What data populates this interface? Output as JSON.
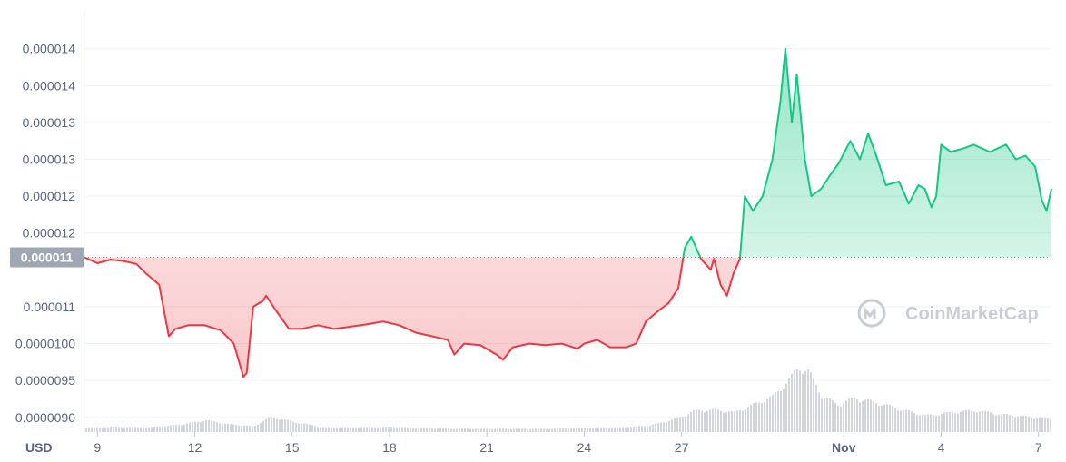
{
  "chart_data": {
    "type": "line",
    "currency_label": "USD",
    "reference_price_label": "0.000011",
    "reference_value": 1.117e-05,
    "ylim": [
      8.8e-06,
      1.46e-05
    ],
    "y_ticks": [
      {
        "value": 1.4e-05,
        "label": "0.000014"
      },
      {
        "value": 1.35e-05,
        "label": "0.000014"
      },
      {
        "value": 1.3e-05,
        "label": "0.000013"
      },
      {
        "value": 1.25e-05,
        "label": "0.000013"
      },
      {
        "value": 1.2e-05,
        "label": "0.000012"
      },
      {
        "value": 1.15e-05,
        "label": "0.000012"
      },
      {
        "value": 1.05e-05,
        "label": "0.000011"
      },
      {
        "value": 1e-05,
        "label": "0.0000100"
      },
      {
        "value": 9.5e-06,
        "label": "0.0000095"
      },
      {
        "value": 9e-06,
        "label": "0.0000090"
      }
    ],
    "x_ticks": [
      {
        "day": 9,
        "label": "9"
      },
      {
        "day": 12,
        "label": "12"
      },
      {
        "day": 15,
        "label": "15"
      },
      {
        "day": 18,
        "label": "18"
      },
      {
        "day": 21,
        "label": "21"
      },
      {
        "day": 24,
        "label": "24"
      },
      {
        "day": 27,
        "label": "27"
      },
      {
        "day": 32,
        "label": "Nov",
        "bold": true
      },
      {
        "day": 35,
        "label": "4"
      },
      {
        "day": 38,
        "label": "7"
      }
    ],
    "xlim": [
      8.6,
      38.4
    ],
    "series": [
      {
        "x": [
          8.6,
          9.0,
          9.4,
          9.8,
          10.2,
          10.5,
          10.9,
          11.2,
          11.4,
          11.8,
          12.3,
          12.8,
          13.2,
          13.5,
          13.6,
          13.8,
          14.1,
          14.2,
          14.5,
          14.9,
          15.3,
          15.8,
          16.3,
          16.8,
          17.3,
          17.8,
          18.3,
          18.8,
          19.3,
          19.8,
          20.0,
          20.3,
          20.8,
          21.3,
          21.5,
          21.8,
          22.3,
          22.8,
          23.3,
          23.8,
          24.0,
          24.4,
          24.8,
          25.3,
          25.6,
          25.9,
          26.3,
          26.6,
          26.9,
          27.1,
          27.3,
          27.6,
          27.9,
          28.0,
          28.2,
          28.4,
          28.6,
          28.8,
          28.95,
          29.2,
          29.5,
          29.8,
          30.05,
          30.2,
          30.4,
          30.55,
          30.8,
          31.0,
          31.3,
          31.6,
          31.85,
          32.2,
          32.5,
          32.75,
          33.0,
          33.3,
          33.7,
          34.0,
          34.3,
          34.5,
          34.7,
          34.85,
          35.0,
          35.3,
          35.7,
          36.0,
          36.5,
          37.0,
          37.3,
          37.6,
          37.9,
          38.1,
          38.25,
          38.4
        ],
        "y": [
          1.117e-05,
          1.109e-05,
          1.114e-05,
          1.112e-05,
          1.108e-05,
          1.095e-05,
          1.08e-05,
          1.01e-05,
          1.02e-05,
          1.025e-05,
          1.025e-05,
          1.018e-05,
          1e-05,
          9.55e-06,
          9.6e-06,
          1.05e-05,
          1.058e-05,
          1.065e-05,
          1.045e-05,
          1.02e-05,
          1.02e-05,
          1.025e-05,
          1.02e-05,
          1.023e-05,
          1.026e-05,
          1.03e-05,
          1.025e-05,
          1.015e-05,
          1.01e-05,
          1.005e-05,
          9.85e-06,
          1e-05,
          9.98e-06,
          9.85e-06,
          9.78e-06,
          9.95e-06,
          1e-05,
          9.98e-06,
          1e-05,
          9.93e-06,
          1e-05,
          1.005e-05,
          9.95e-06,
          9.95e-06,
          1e-05,
          1.03e-05,
          1.045e-05,
          1.055e-05,
          1.075e-05,
          1.13e-05,
          1.145e-05,
          1.115e-05,
          1.1e-05,
          1.115e-05,
          1.08e-05,
          1.065e-05,
          1.095e-05,
          1.115e-05,
          1.2e-05,
          1.18e-05,
          1.2e-05,
          1.25e-05,
          1.33e-05,
          1.4e-05,
          1.3e-05,
          1.365e-05,
          1.25e-05,
          1.2e-05,
          1.21e-05,
          1.23e-05,
          1.245e-05,
          1.275e-05,
          1.25e-05,
          1.285e-05,
          1.255e-05,
          1.215e-05,
          1.22e-05,
          1.19e-05,
          1.215e-05,
          1.21e-05,
          1.185e-05,
          1.2e-05,
          1.27e-05,
          1.26e-05,
          1.265e-05,
          1.27e-05,
          1.26e-05,
          1.27e-05,
          1.25e-05,
          1.255e-05,
          1.24e-05,
          1.195e-05,
          1.18e-05,
          1.21e-05
        ]
      }
    ],
    "volume": {
      "x": [
        8.6,
        9.5,
        10.5,
        11.5,
        12.3,
        13.0,
        13.8,
        14.3,
        15.0,
        16.0,
        17.0,
        18.0,
        19.0,
        20.0,
        21.0,
        22.0,
        23.0,
        24.0,
        25.0,
        26.0,
        26.8,
        27.4,
        28.0,
        28.6,
        29.2,
        29.8,
        30.3,
        30.6,
        30.9,
        31.3,
        31.8,
        32.3,
        33.0,
        33.7,
        34.5,
        35.3,
        36.0,
        36.8,
        37.5,
        38.4
      ],
      "values": [
        0.06,
        0.08,
        0.07,
        0.11,
        0.18,
        0.12,
        0.09,
        0.23,
        0.16,
        0.07,
        0.07,
        0.08,
        0.06,
        0.05,
        0.05,
        0.05,
        0.05,
        0.06,
        0.07,
        0.1,
        0.2,
        0.33,
        0.34,
        0.3,
        0.42,
        0.55,
        0.8,
        1.0,
        0.92,
        0.55,
        0.42,
        0.52,
        0.45,
        0.35,
        0.25,
        0.3,
        0.33,
        0.27,
        0.24,
        0.2
      ]
    },
    "colors": {
      "up": "#16c784",
      "down": "#ea3943",
      "grid": "#eff2f5",
      "axis_text": "#58667e",
      "badge": "#a0a7b4",
      "volume": "#d2d5db"
    },
    "grid": true,
    "watermark": "CoinMarketCap"
  }
}
